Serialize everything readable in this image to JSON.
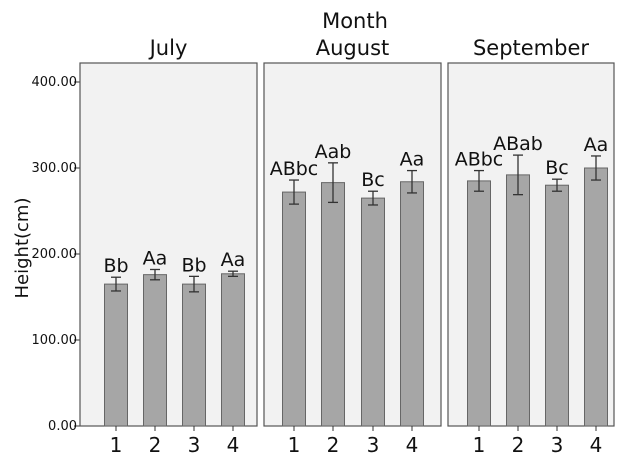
{
  "chart_data": {
    "type": "bar",
    "title": "Month",
    "ylabel": "Height(cm)",
    "xlabel": "",
    "ylim": [
      0,
      400
    ],
    "yticks": [
      "0.00",
      "100.00",
      "200.00",
      "300.00",
      "400.00"
    ],
    "categories": [
      "1",
      "2",
      "3",
      "4"
    ],
    "bar_color": "#a6a6a6",
    "panel_bg": "#f2f2f2",
    "grid": false,
    "panels": [
      {
        "name": "July",
        "values": [
          165,
          176,
          165,
          177
        ],
        "errors": [
          8,
          6,
          9,
          3
        ],
        "labels": [
          "Bb",
          "Aa",
          "Bb",
          "Aa"
        ]
      },
      {
        "name": "August",
        "values": [
          272,
          283,
          265,
          284
        ],
        "errors": [
          14,
          23,
          8,
          13
        ],
        "labels": [
          "ABbc",
          "Aab",
          "Bc",
          "Aa"
        ]
      },
      {
        "name": "September",
        "values": [
          285,
          292,
          280,
          300
        ],
        "errors": [
          12,
          23,
          7,
          14
        ],
        "labels": [
          "ABbc",
          "ABab",
          "Bc",
          "Aa"
        ]
      }
    ]
  }
}
